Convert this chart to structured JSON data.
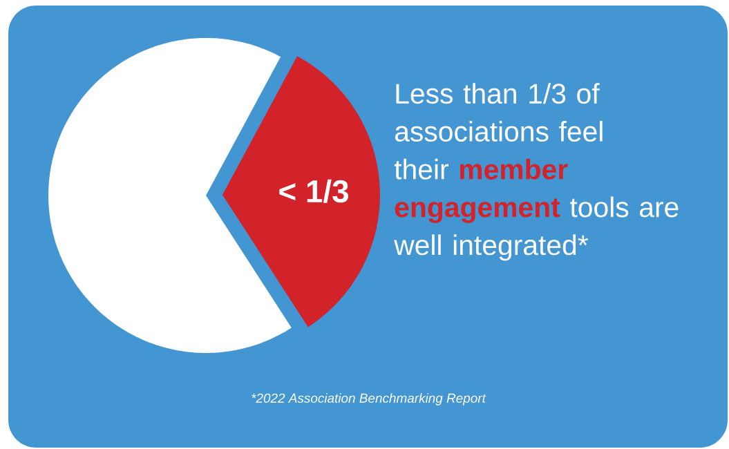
{
  "chart_data": {
    "type": "pie",
    "title": "Less than 1/3 of associations feel their **member engagement** tools are well integrated*",
    "categories": [
      null,
      null
    ],
    "values": [
      67,
      33
    ],
    "colors": [
      "#ffffff",
      "#d2232a"
    ],
    "value_labels": [
      null,
      "< 1/3"
    ],
    "annotations": [
      "*2022 Association Benchmarking Report"
    ]
  }
}
